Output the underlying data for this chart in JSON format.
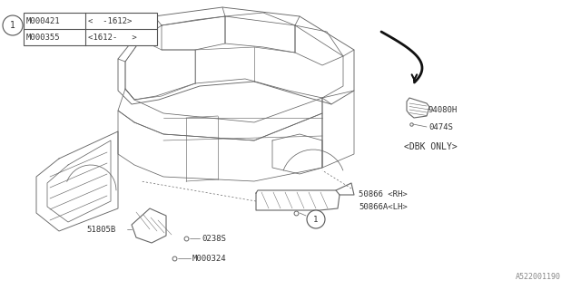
{
  "bg_color": "#ffffff",
  "line_color": "#555555",
  "text_color": "#333333",
  "fig_width": 6.4,
  "fig_height": 3.2,
  "watermark": "A522001190",
  "table_circle": "1",
  "row1_part": "M000421",
  "row1_range": "<  -1612>",
  "row2_part": "M000355",
  "row2_range": "<1612-   >",
  "label_94080H": "94080H",
  "label_0474S": "0474S",
  "label_dbk": "<DBK ONLY>",
  "label_50866rh": "50866 <RH>",
  "label_50866lh": "50866A<LH>",
  "label_51805B": "51805B",
  "label_0238S": "0238S",
  "label_M000324": "M000324",
  "car_body_color": "#888888",
  "car_detail_color": "#aaaaaa"
}
